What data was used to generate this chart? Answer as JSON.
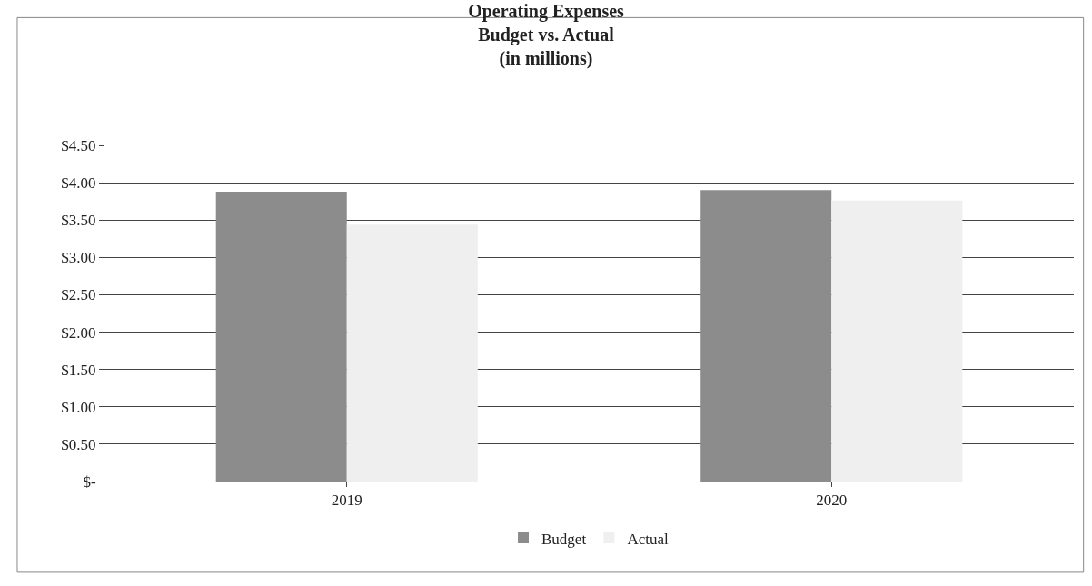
{
  "chart_data": {
    "type": "bar",
    "title": "Operating Expenses\nBudget vs. Actual\n(in millions)",
    "categories": [
      "2019",
      "2020"
    ],
    "series": [
      {
        "name": "Budget",
        "color": "#8c8c8c",
        "values": [
          3.88,
          3.9
        ]
      },
      {
        "name": "Actual",
        "color": "#efefef",
        "values": [
          3.44,
          3.76
        ]
      }
    ],
    "ylim": [
      0,
      4.5
    ],
    "yticks": [
      {
        "value": 0,
        "label": "$-"
      },
      {
        "value": 0.5,
        "label": "$0.50"
      },
      {
        "value": 1,
        "label": "$1.00"
      },
      {
        "value": 1.5,
        "label": "$1.50"
      },
      {
        "value": 2,
        "label": "$2.00"
      },
      {
        "value": 2.5,
        "label": "$2.50"
      },
      {
        "value": 3,
        "label": "$3.00"
      },
      {
        "value": 3.5,
        "label": "$3.50"
      },
      {
        "value": 4,
        "label": "$4.00"
      },
      {
        "value": 4.5,
        "label": "$4.50"
      }
    ],
    "grid": "y",
    "legend": "bottom"
  }
}
